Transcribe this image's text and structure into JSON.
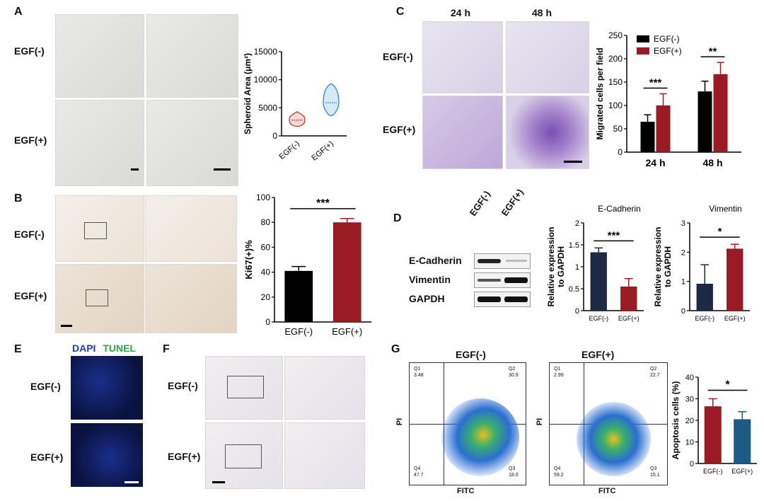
{
  "figure_labels": {
    "A": "A",
    "B": "B",
    "C": "C",
    "D": "D",
    "E": "E",
    "F": "F",
    "G": "G"
  },
  "conditions": {
    "minus": "EGF(-)",
    "plus": "EGF(+)"
  },
  "time_labels": {
    "t24": "24 h",
    "t48": "48 h"
  },
  "panelE_stains": {
    "dapi": "DAPI",
    "tunel": "TUNEL"
  },
  "blot_labels": [
    "E-Cadherin",
    "Vimentin",
    "GAPDH"
  ],
  "flow": {
    "title_minus": "EGF(-)",
    "title_plus": "EGF(+)",
    "xlabel": "FITC",
    "ylabel": "PI",
    "minus_quadrants": {
      "Q1": "Q1",
      "Q1v": "3.48",
      "Q2": "Q2",
      "Q2v": "30.9",
      "Q3": "Q3",
      "Q3v": "18.0",
      "Q4": "Q4",
      "Q4v": "47.7"
    },
    "plus_quadrants": {
      "Q1": "Q1",
      "Q1v": "2.99",
      "Q2": "Q2",
      "Q2v": "22.7",
      "Q3": "Q3",
      "Q3v": "15.1",
      "Q4": "Q4",
      "Q4v": "59.2"
    }
  },
  "colors": {
    "black": "#000000",
    "red": "#9b1b24",
    "navy": "#1c2a44",
    "blue": "#1e5a86",
    "dapi": "#1e3cb4",
    "tunel": "#2aa84a"
  },
  "chart_data": [
    {
      "id": "A_violin",
      "type": "violin",
      "ylabel": "Spheroid Area (μm²)",
      "categories": [
        "EGF(-)",
        "EGF(+)"
      ],
      "medians": [
        2800,
        5900
      ],
      "ranges": [
        [
          1700,
          4300
        ],
        [
          3600,
          9300
        ]
      ],
      "ylim": [
        0,
        15000
      ],
      "yticks": [
        0,
        5000,
        10000,
        15000
      ]
    },
    {
      "id": "B_ki67",
      "type": "bar",
      "ylabel": "Ki67(+)%",
      "categories": [
        "EGF(-)",
        "EGF(+)"
      ],
      "values": [
        41,
        80
      ],
      "errors": [
        3.5,
        3
      ],
      "ylim": [
        0,
        100
      ],
      "yticks": [
        0,
        20,
        40,
        60,
        80,
        100
      ],
      "significance": "***"
    },
    {
      "id": "C_migration",
      "type": "bar",
      "ylabel": "Migrated cells per field",
      "categories": [
        "24 h",
        "48 h"
      ],
      "series": [
        {
          "name": "EGF(-)",
          "values": [
            65,
            130
          ],
          "errors": [
            15,
            22
          ]
        },
        {
          "name": "EGF(+)",
          "values": [
            100,
            167
          ],
          "errors": [
            25,
            25
          ]
        }
      ],
      "ylim": [
        0,
        250
      ],
      "yticks": [
        0,
        50,
        100,
        150,
        200,
        250
      ],
      "significance": [
        "***",
        "**"
      ],
      "legend": "top-left"
    },
    {
      "id": "D_ecad",
      "type": "bar",
      "title": "E-Cadherin",
      "ylabel": "Relative expression to GAPDH",
      "categories": [
        "EGF(-)",
        "EGF(+)"
      ],
      "values": [
        1.33,
        0.55
      ],
      "errors": [
        0.1,
        0.18
      ],
      "ylim": [
        0,
        2.0
      ],
      "yticks": [
        0,
        0.5,
        1.0,
        1.5,
        2.0
      ],
      "significance": "***"
    },
    {
      "id": "D_vim",
      "type": "bar",
      "title": "Vimentin",
      "ylabel": "Relative expression to GAPDH",
      "categories": [
        "EGF(-)",
        "EGF(+)"
      ],
      "values": [
        0.92,
        2.12
      ],
      "errors": [
        0.65,
        0.15
      ],
      "ylim": [
        0,
        3
      ],
      "yticks": [
        0,
        1,
        2,
        3
      ],
      "significance": "*"
    },
    {
      "id": "G_apop",
      "type": "bar",
      "ylabel": "Apoptosis cells (%)",
      "categories": [
        "EGF(-)",
        "EGF(+)"
      ],
      "values": [
        26.5,
        20.5
      ],
      "errors": [
        3.5,
        3.5
      ],
      "ylim": [
        0,
        40
      ],
      "yticks": [
        0,
        10,
        20,
        30,
        40
      ],
      "significance": "*"
    }
  ]
}
